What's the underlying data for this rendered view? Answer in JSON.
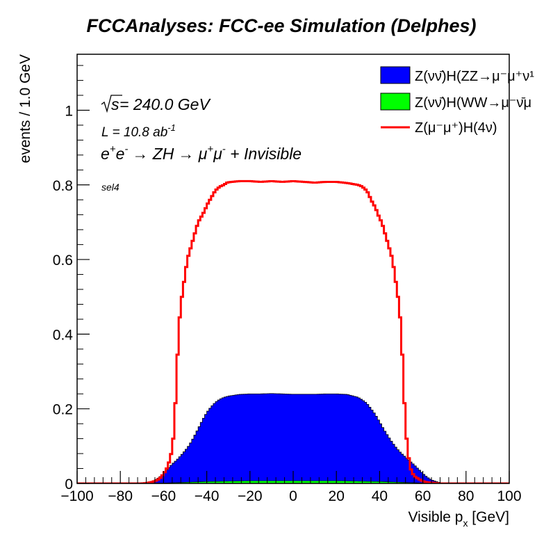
{
  "chart_data": {
    "type": "area",
    "title": "FCCAnalyses: FCC-ee Simulation (Delphes)",
    "xlabel": "Visible p",
    "xlabel_sub": "x",
    "xlabel_unit": " [GeV]",
    "ylabel": "events / 1.0 GeV",
    "xlim": [
      -100,
      100
    ],
    "ylim": [
      0,
      1.15
    ],
    "x_ticks": [
      -100,
      -80,
      -60,
      -40,
      -20,
      0,
      20,
      40,
      60,
      80,
      100
    ],
    "x_tick_labels": [
      "−100",
      "−80",
      "−60",
      "−40",
      "−20",
      "0",
      "20",
      "40",
      "60",
      "80",
      "100"
    ],
    "y_ticks": [
      0,
      0.2,
      0.4,
      0.6,
      0.8,
      1
    ],
    "y_tick_labels": [
      "0",
      "0.2",
      "0.4",
      "0.6",
      "0.8",
      "1"
    ],
    "legend_position": "top-right",
    "annotations": {
      "sqrt_s": "240.0 GeV",
      "lumi": "10.8 ab",
      "lumi_exp": "-1",
      "process_lhs": "e",
      "process_arrow_1": "→ ZH",
      "process_arrow_2": "→ μ",
      "process_tail": " + Invisible",
      "selection": "sel4"
    },
    "series": [
      {
        "name": "Z(νν̄)H(ZZ→μ⁻μ⁺νν̄)",
        "legend_label": "Z(νν̄)H(ZZ→μ⁻μ⁺ν¹",
        "style": "filled",
        "color": "#0000ff",
        "x": [
          -70,
          -68,
          -66,
          -64,
          -62,
          -60,
          -58,
          -56,
          -54,
          -52,
          -50,
          -48,
          -46,
          -44,
          -42,
          -40,
          -38,
          -36,
          -34,
          -32,
          -30,
          -25,
          -20,
          -15,
          -10,
          -5,
          0,
          5,
          10,
          15,
          20,
          25,
          30,
          32,
          34,
          36,
          38,
          40,
          42,
          44,
          46,
          48,
          50,
          52,
          54,
          56,
          58,
          60,
          62,
          64,
          66,
          68,
          70
        ],
        "values": [
          0.001,
          0.002,
          0.004,
          0.008,
          0.015,
          0.025,
          0.038,
          0.05,
          0.06,
          0.072,
          0.085,
          0.1,
          0.12,
          0.142,
          0.165,
          0.185,
          0.2,
          0.212,
          0.22,
          0.225,
          0.228,
          0.232,
          0.233,
          0.233,
          0.234,
          0.233,
          0.232,
          0.232,
          0.232,
          0.233,
          0.233,
          0.232,
          0.225,
          0.218,
          0.21,
          0.195,
          0.18,
          0.16,
          0.14,
          0.122,
          0.105,
          0.09,
          0.078,
          0.068,
          0.058,
          0.048,
          0.037,
          0.026,
          0.016,
          0.009,
          0.005,
          0.002,
          0.001
        ]
      },
      {
        "name": "Z(νν̄)H(WW→μ⁻ν̄μ⁺ν)",
        "legend_label": "Z(νν̄)H(WW→μ⁻ν̄μ",
        "style": "filled",
        "color": "#00ff00",
        "x": [
          -70,
          -60,
          -50,
          -40,
          -30,
          -20,
          -10,
          0,
          10,
          20,
          30,
          40,
          50,
          60,
          70
        ],
        "values": [
          0.0,
          0.001,
          0.003,
          0.005,
          0.006,
          0.007,
          0.007,
          0.007,
          0.007,
          0.007,
          0.006,
          0.005,
          0.003,
          0.001,
          0.0
        ]
      },
      {
        "name": "Z(μ⁻μ⁺)H(4ν)",
        "legend_label": "Z(μ⁻μ⁺)H(4ν)",
        "style": "line",
        "color": "#ff0000",
        "x": [
          -100,
          -70,
          -68,
          -66,
          -64,
          -62,
          -60,
          -58,
          -56,
          -55,
          -54,
          -53,
          -52,
          -51,
          -50,
          -49,
          -48,
          -47,
          -46,
          -45,
          -44,
          -43,
          -42,
          -41,
          -40,
          -39,
          -38,
          -37,
          -36,
          -35,
          -34,
          -33,
          -32,
          -31,
          -30,
          -25,
          -20,
          -15,
          -10,
          -5,
          0,
          5,
          10,
          15,
          20,
          25,
          30,
          31,
          32,
          33,
          34,
          35,
          36,
          37,
          38,
          39,
          40,
          41,
          42,
          43,
          44,
          45,
          46,
          47,
          48,
          49,
          50,
          51,
          52,
          53,
          54,
          55,
          56,
          58,
          60,
          62,
          64,
          66,
          68,
          70,
          100
        ],
        "values": [
          0.0,
          0.0,
          0.001,
          0.003,
          0.006,
          0.012,
          0.025,
          0.045,
          0.09,
          0.15,
          0.28,
          0.41,
          0.48,
          0.52,
          0.56,
          0.6,
          0.62,
          0.64,
          0.66,
          0.68,
          0.7,
          0.71,
          0.72,
          0.73,
          0.745,
          0.755,
          0.765,
          0.775,
          0.785,
          0.79,
          0.795,
          0.798,
          0.8,
          0.805,
          0.807,
          0.81,
          0.81,
          0.808,
          0.81,
          0.808,
          0.81,
          0.808,
          0.806,
          0.808,
          0.808,
          0.805,
          0.8,
          0.798,
          0.795,
          0.79,
          0.785,
          0.775,
          0.76,
          0.75,
          0.74,
          0.725,
          0.71,
          0.7,
          0.68,
          0.66,
          0.64,
          0.62,
          0.6,
          0.56,
          0.52,
          0.48,
          0.41,
          0.28,
          0.15,
          0.09,
          0.045,
          0.03,
          0.02,
          0.012,
          0.006,
          0.003,
          0.002,
          0.001,
          0.0,
          0.0,
          0.0
        ]
      }
    ]
  }
}
